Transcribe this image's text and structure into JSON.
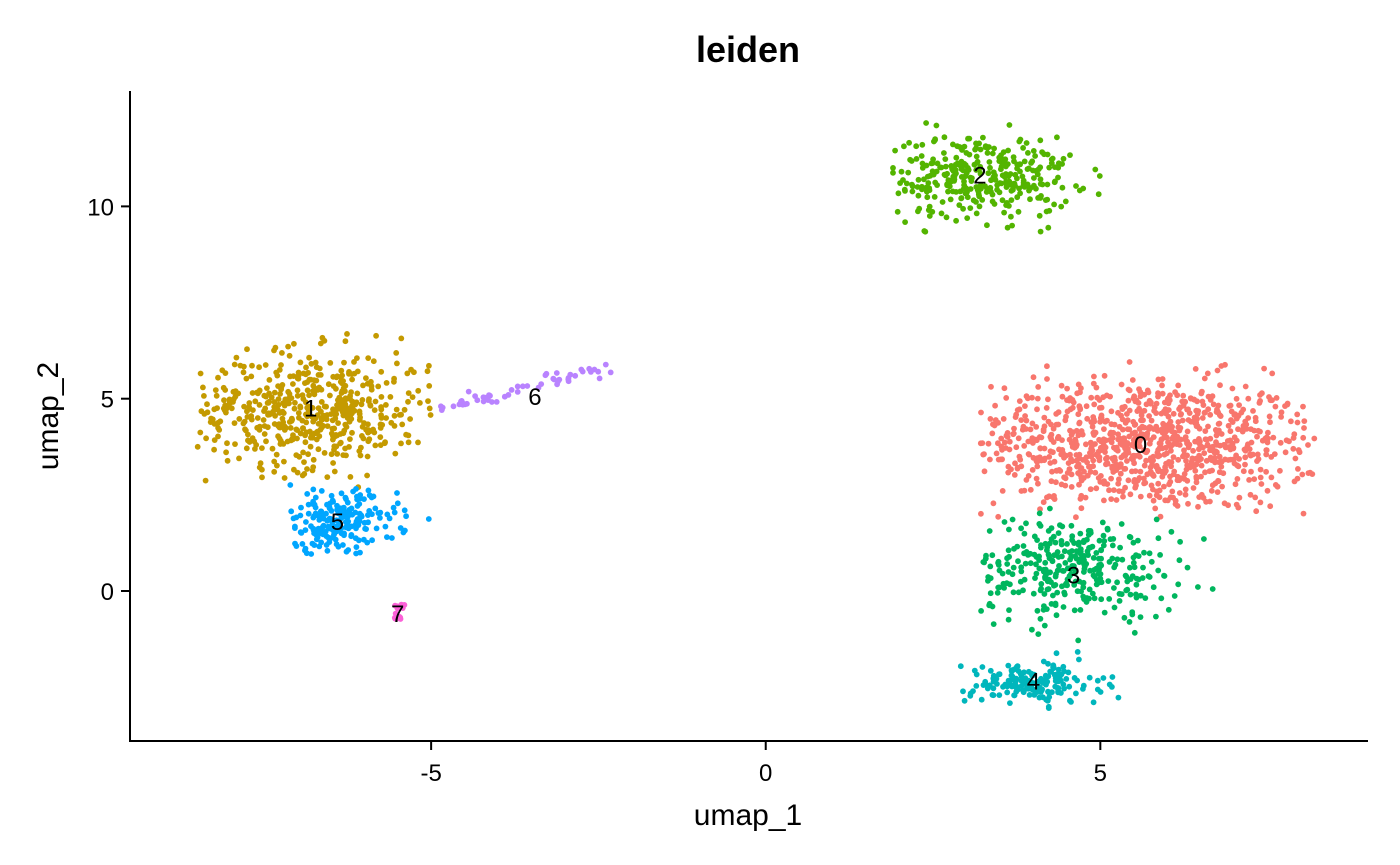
{
  "chart_data": {
    "type": "scatter",
    "title": "leiden",
    "xlabel": "umap_1",
    "ylabel": "umap_2",
    "xlim": [
      -9.5,
      9
    ],
    "ylim": [
      -3.9,
      13
    ],
    "xticks": [
      -5,
      0,
      5
    ],
    "yticks": [
      0,
      5,
      10
    ],
    "xtick_labels": [
      "-5",
      "0",
      "5"
    ],
    "ytick_labels": [
      "0",
      "5",
      "10"
    ],
    "grid": false,
    "legend": "none",
    "point_count_note": "approximate",
    "clusters": [
      {
        "label": "0",
        "color": "#F8766D",
        "center": [
          5.6,
          3.8
        ],
        "spread": [
          1.35,
          0.85
        ],
        "n": 950,
        "extent": {
          "x": [
            3.2,
            8.2
          ],
          "y": [
            1.9,
            6.3
          ]
        }
      },
      {
        "label": "1",
        "color": "#C49A00",
        "center": [
          -6.8,
          4.7
        ],
        "spread": [
          0.9,
          0.75
        ],
        "n": 520,
        "extent": {
          "x": [
            -8.5,
            -4.8
          ],
          "y": [
            2.6,
            6.7
          ]
        }
      },
      {
        "label": "2",
        "color": "#53B400",
        "center": [
          3.2,
          10.8
        ],
        "spread": [
          0.7,
          0.55
        ],
        "n": 330,
        "extent": {
          "x": [
            1.9,
            5.0
          ],
          "y": [
            8.7,
            12.2
          ]
        }
      },
      {
        "label": "3",
        "color": "#00B65E",
        "center": [
          4.6,
          0.6
        ],
        "spread": [
          0.8,
          0.65
        ],
        "n": 330,
        "extent": {
          "x": [
            3.2,
            6.8
          ],
          "y": [
            -1.3,
            2.3
          ]
        }
      },
      {
        "label": "4",
        "color": "#00B6BC",
        "center": [
          4.0,
          -2.4
        ],
        "spread": [
          0.5,
          0.28
        ],
        "n": 170,
        "extent": {
          "x": [
            2.9,
            5.6
          ],
          "y": [
            -3.1,
            -0.8
          ]
        }
      },
      {
        "label": "5",
        "color": "#00A6FF",
        "center": [
          -6.4,
          1.8
        ],
        "spread": [
          0.45,
          0.4
        ],
        "n": 210,
        "extent": {
          "x": [
            -7.3,
            -4.6
          ],
          "y": [
            0.9,
            3.2
          ]
        }
      },
      {
        "label": "6",
        "color": "#B983FF",
        "center": [
          -3.6,
          5.1
        ],
        "spread": [
          0.8,
          0.15
        ],
        "n": 55,
        "extent": {
          "x": [
            -5.0,
            -2.3
          ],
          "y": [
            4.6,
            5.9
          ]
        }
      },
      {
        "label": "7",
        "color": "#FB61D7",
        "center": [
          -5.5,
          -0.6
        ],
        "spread": [
          0.08,
          0.15
        ],
        "n": 14,
        "extent": {
          "x": [
            -5.6,
            -5.4
          ],
          "y": [
            -0.8,
            0.1
          ]
        }
      }
    ],
    "cluster_labels": [
      {
        "text": "0",
        "x": 5.6,
        "y": 3.8
      },
      {
        "text": "1",
        "x": -6.8,
        "y": 4.75
      },
      {
        "text": "2",
        "x": 3.2,
        "y": 10.8
      },
      {
        "text": "3",
        "x": 4.6,
        "y": 0.4
      },
      {
        "text": "4",
        "x": 4.0,
        "y": -2.35
      },
      {
        "text": "5",
        "x": -6.4,
        "y": 1.8
      },
      {
        "text": "6",
        "x": -3.45,
        "y": 5.05
      },
      {
        "text": "7",
        "x": -5.5,
        "y": -0.6
      }
    ]
  }
}
